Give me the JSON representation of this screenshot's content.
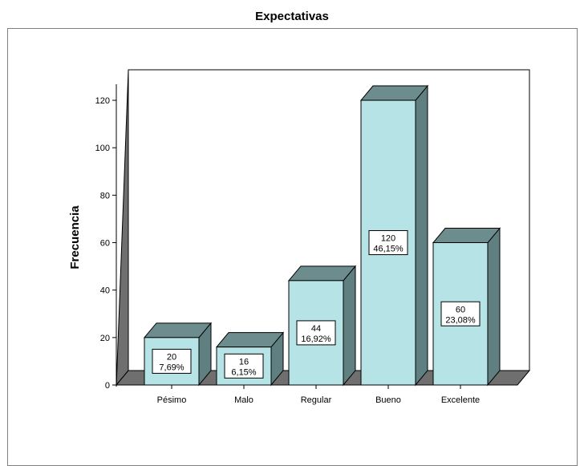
{
  "chart_data": {
    "type": "bar",
    "title": "Expectativas",
    "xlabel": "",
    "ylabel": "Frecuencia",
    "ylim": [
      0,
      130
    ],
    "yticks": [
      0,
      20,
      40,
      60,
      80,
      100,
      120
    ],
    "categories": [
      "Pésimo",
      "Malo",
      "Regular",
      "Bueno",
      "Excelente"
    ],
    "values": [
      20,
      16,
      44,
      120,
      60
    ],
    "percent_labels": [
      "7,69%",
      "6,15%",
      "16,92%",
      "46,15%",
      "23,08%"
    ],
    "grid": false,
    "legend": "none",
    "style": "3d",
    "colors": {
      "bar_front": "#b6e4e6",
      "bar_top": "#6d8c8e",
      "bar_side": "#5f7f81",
      "floor": "#6f6f6f",
      "left_wall": "#6f6f6f",
      "outline": "#000000"
    }
  }
}
